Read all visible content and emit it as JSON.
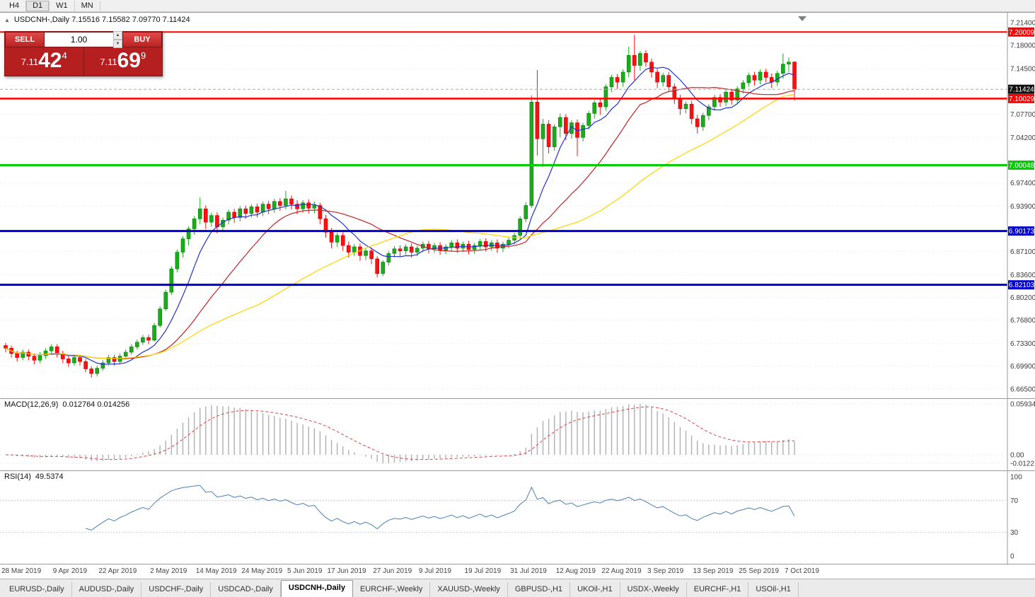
{
  "toolbar": {
    "timeframes": [
      "H4",
      "D1",
      "W1",
      "MN"
    ],
    "active": "D1"
  },
  "chart": {
    "symbol": "USDCNH-",
    "period": "Daily",
    "title_line": "USDCNH-,Daily  7.15516 7.15582 7.09770 7.11424"
  },
  "one_click": {
    "sell_label": "SELL",
    "buy_label": "BUY",
    "volume": "1.00",
    "sell_price": {
      "head": "7.11",
      "big": "42",
      "sup": "4"
    },
    "buy_price": {
      "head": "7.11",
      "big": "69",
      "sup": "9"
    }
  },
  "macd": {
    "title": "MACD(12,26,9)",
    "values": "0.012764 0.014256",
    "scale": [
      "0.059344",
      "0.00",
      "-0.012219"
    ]
  },
  "rsi": {
    "title": "RSI(14)",
    "value": "49.5374",
    "scale": [
      "100",
      "70",
      "30",
      "0"
    ]
  },
  "tabs": {
    "active_index": 4,
    "items": [
      "EURUSD-,Daily",
      "AUDUSD-,Daily",
      "USDCHF-,Daily",
      "USDCAD-,Daily",
      "USDCNH-,Daily",
      "EURCHF-,Weekly",
      "XAUUSD-,Weekly",
      "GBPUSD-,H1",
      "UKOil-,H1",
      "USDX-,Weekly",
      "EURCHF-,H1",
      "USOil-,H1"
    ],
    "separator": "|"
  },
  "chart_data": {
    "type": "candlestick",
    "symbol": "USDCNH-",
    "timeframe": "Daily",
    "ohlc_display": {
      "open": "7.15516",
      "high": "7.15582",
      "low": "7.09770",
      "close": "7.11424"
    },
    "current_price": 7.11424,
    "colors": {
      "bull": "#1cab1c",
      "bear": "#ff0f0f",
      "bull_border": "#0d7a0d",
      "bear_border": "#c00000"
    },
    "price_scale_ticks": [
      7.214,
      7.18,
      7.145,
      7.077,
      7.042,
      6.974,
      6.939,
      6.871,
      6.836,
      6.802,
      6.768,
      6.733,
      6.699,
      6.665
    ],
    "hlines": [
      {
        "price": 7.20009,
        "label": "7.20009",
        "color": "#ff0000",
        "width": 2
      },
      {
        "price": 7.10029,
        "label": "7.10029",
        "color": "#ff0000",
        "width": 2.5
      },
      {
        "price": 7.00048,
        "label": "7.00048",
        "color": "#00cc00",
        "width": 3
      },
      {
        "price": 6.90173,
        "label": "6.90173",
        "color": "#0000cc",
        "width": 3
      },
      {
        "price": 6.82103,
        "label": "6.82103",
        "color": "#0000cc",
        "width": 3
      }
    ],
    "moving_averages": [
      {
        "name": "fast-ma",
        "period": 8,
        "color": "#2233cc"
      },
      {
        "name": "medium-ma",
        "period": 20,
        "color": "#c22222"
      },
      {
        "name": "slow-ma",
        "period": 45,
        "color": "#ffd500"
      }
    ],
    "macd_settings": {
      "fast": 12,
      "slow": 26,
      "signal": 9,
      "histogram_color": "#b0b0b0",
      "signal_color": "#e04444"
    },
    "rsi_settings": {
      "period": 14,
      "color": "#4a7fb5",
      "levels": [
        70,
        30
      ]
    },
    "date_labels": [
      {
        "label": "28 Mar 2019",
        "index": 0
      },
      {
        "label": "9 Apr 2019",
        "index": 9
      },
      {
        "label": "22 Apr 2019",
        "index": 17
      },
      {
        "label": "2 May 2019",
        "index": 26
      },
      {
        "label": "14 May 2019",
        "index": 34
      },
      {
        "label": "24 May 2019",
        "index": 42
      },
      {
        "label": "5 Jun 2019",
        "index": 50
      },
      {
        "label": "17 Jun 2019",
        "index": 57
      },
      {
        "label": "27 Jun 2019",
        "index": 65
      },
      {
        "label": "9 Jul 2019",
        "index": 73
      },
      {
        "label": "19 Jul 2019",
        "index": 81
      },
      {
        "label": "31 Jul 2019",
        "index": 89
      },
      {
        "label": "12 Aug 2019",
        "index": 97
      },
      {
        "label": "22 Aug 2019",
        "index": 105
      },
      {
        "label": "3 Sep 2019",
        "index": 113
      },
      {
        "label": "13 Sep 2019",
        "index": 121
      },
      {
        "label": "25 Sep 2019",
        "index": 129
      },
      {
        "label": "7 Oct 2019",
        "index": 137
      }
    ],
    "candles": [
      [
        6.73,
        6.734,
        6.72,
        6.726
      ],
      [
        6.726,
        6.73,
        6.712,
        6.718
      ],
      [
        6.718,
        6.722,
        6.706,
        6.712
      ],
      [
        6.712,
        6.724,
        6.708,
        6.72
      ],
      [
        6.72,
        6.724,
        6.708,
        6.714
      ],
      [
        6.714,
        6.718,
        6.702,
        6.708
      ],
      [
        6.708,
        6.72,
        6.704,
        6.715
      ],
      [
        6.715,
        6.726,
        6.71,
        6.722
      ],
      [
        6.722,
        6.732,
        6.716,
        6.728
      ],
      [
        6.728,
        6.732,
        6.712,
        6.718
      ],
      [
        6.718,
        6.722,
        6.704,
        6.71
      ],
      [
        6.71,
        6.714,
        6.698,
        6.704
      ],
      [
        6.704,
        6.716,
        6.7,
        6.712
      ],
      [
        6.712,
        6.716,
        6.7,
        6.706
      ],
      [
        6.706,
        6.71,
        6.69,
        6.695
      ],
      [
        6.695,
        6.699,
        6.682,
        6.688
      ],
      [
        6.688,
        6.7,
        6.684,
        6.696
      ],
      [
        6.696,
        6.708,
        6.692,
        6.704
      ],
      [
        6.704,
        6.716,
        6.7,
        6.712
      ],
      [
        6.712,
        6.716,
        6.7,
        6.706
      ],
      [
        6.706,
        6.718,
        6.702,
        6.714
      ],
      [
        6.714,
        6.724,
        6.71,
        6.72
      ],
      [
        6.72,
        6.732,
        6.716,
        6.728
      ],
      [
        6.728,
        6.739,
        6.724,
        6.735
      ],
      [
        6.735,
        6.746,
        6.731,
        6.742
      ],
      [
        6.742,
        6.746,
        6.732,
        6.738
      ],
      [
        6.738,
        6.764,
        6.736,
        6.76
      ],
      [
        6.76,
        6.789,
        6.757,
        6.785
      ],
      [
        6.785,
        6.814,
        6.782,
        6.81
      ],
      [
        6.81,
        6.849,
        6.806,
        6.845
      ],
      [
        6.845,
        6.874,
        6.84,
        6.87
      ],
      [
        6.87,
        6.894,
        6.862,
        6.89
      ],
      [
        6.89,
        6.909,
        6.88,
        6.905
      ],
      [
        6.905,
        6.924,
        6.896,
        6.92
      ],
      [
        6.92,
        6.952,
        6.912,
        6.935
      ],
      [
        6.935,
        6.94,
        6.905,
        6.915
      ],
      [
        6.915,
        6.929,
        6.908,
        6.925
      ],
      [
        6.925,
        6.93,
        6.898,
        6.908
      ],
      [
        6.908,
        6.922,
        6.9,
        6.918
      ],
      [
        6.918,
        6.934,
        6.912,
        6.93
      ],
      [
        6.93,
        6.935,
        6.914,
        6.922
      ],
      [
        6.922,
        6.939,
        6.916,
        6.935
      ],
      [
        6.935,
        6.94,
        6.92,
        6.928
      ],
      [
        6.928,
        6.942,
        6.922,
        6.938
      ],
      [
        6.938,
        6.943,
        6.922,
        6.93
      ],
      [
        6.93,
        6.946,
        6.924,
        6.942
      ],
      [
        6.942,
        6.947,
        6.927,
        6.935
      ],
      [
        6.935,
        6.95,
        6.929,
        6.946
      ],
      [
        6.946,
        6.951,
        6.932,
        6.94
      ],
      [
        6.94,
        6.962,
        6.934,
        6.95
      ],
      [
        6.95,
        6.955,
        6.934,
        6.942
      ],
      [
        6.942,
        6.948,
        6.927,
        6.935
      ],
      [
        6.935,
        6.948,
        6.929,
        6.944
      ],
      [
        6.944,
        6.949,
        6.928,
        6.936
      ],
      [
        6.936,
        6.946,
        6.928,
        6.94
      ],
      [
        6.94,
        6.944,
        6.912,
        6.92
      ],
      [
        6.92,
        6.926,
        6.892,
        6.9
      ],
      [
        6.9,
        6.906,
        6.876,
        6.885
      ],
      [
        6.885,
        6.899,
        6.878,
        6.895
      ],
      [
        6.895,
        6.9,
        6.872,
        6.88
      ],
      [
        6.88,
        6.886,
        6.862,
        6.87
      ],
      [
        6.87,
        6.882,
        6.864,
        6.878
      ],
      [
        6.878,
        6.883,
        6.857,
        6.865
      ],
      [
        6.865,
        6.876,
        6.858,
        6.872
      ],
      [
        6.872,
        6.877,
        6.852,
        6.86
      ],
      [
        6.86,
        6.864,
        6.832,
        6.838
      ],
      [
        6.838,
        6.858,
        6.834,
        6.855
      ],
      [
        6.855,
        6.872,
        6.85,
        6.868
      ],
      [
        6.868,
        6.879,
        6.862,
        6.875
      ],
      [
        6.875,
        6.88,
        6.864,
        6.872
      ],
      [
        6.872,
        6.882,
        6.866,
        6.878
      ],
      [
        6.878,
        6.883,
        6.862,
        6.87
      ],
      [
        6.87,
        6.88,
        6.864,
        6.876
      ],
      [
        6.876,
        6.886,
        6.87,
        6.882
      ],
      [
        6.882,
        6.887,
        6.868,
        6.875
      ],
      [
        6.875,
        6.884,
        6.869,
        6.88
      ],
      [
        6.88,
        6.885,
        6.866,
        6.873
      ],
      [
        6.873,
        6.882,
        6.867,
        6.878
      ],
      [
        6.878,
        6.888,
        6.872,
        6.884
      ],
      [
        6.884,
        6.889,
        6.869,
        6.876
      ],
      [
        6.876,
        6.886,
        6.87,
        6.882
      ],
      [
        6.882,
        6.887,
        6.867,
        6.874
      ],
      [
        6.874,
        6.884,
        6.868,
        6.88
      ],
      [
        6.88,
        6.89,
        6.874,
        6.886
      ],
      [
        6.886,
        6.891,
        6.871,
        6.878
      ],
      [
        6.878,
        6.888,
        6.872,
        6.884
      ],
      [
        6.884,
        6.889,
        6.869,
        6.876
      ],
      [
        6.876,
        6.886,
        6.87,
        6.882
      ],
      [
        6.882,
        6.892,
        6.876,
        6.888
      ],
      [
        6.888,
        6.899,
        6.882,
        6.895
      ],
      [
        6.895,
        6.924,
        6.89,
        6.92
      ],
      [
        6.92,
        6.945,
        6.915,
        6.94
      ],
      [
        6.94,
        7.105,
        6.936,
        7.095
      ],
      [
        7.095,
        7.143,
        7.015,
        7.04
      ],
      [
        7.04,
        7.07,
        6.998,
        7.062
      ],
      [
        7.062,
        7.068,
        7.018,
        7.028
      ],
      [
        7.028,
        7.062,
        7.022,
        7.058
      ],
      [
        7.058,
        7.078,
        7.042,
        7.072
      ],
      [
        7.072,
        7.077,
        7.038,
        7.048
      ],
      [
        7.048,
        7.068,
        7.04,
        7.064
      ],
      [
        7.064,
        7.069,
        7.014,
        7.042
      ],
      [
        7.042,
        7.064,
        7.036,
        7.06
      ],
      [
        7.06,
        7.082,
        7.054,
        7.078
      ],
      [
        7.078,
        7.098,
        7.07,
        7.094
      ],
      [
        7.094,
        7.099,
        7.076,
        7.088
      ],
      [
        7.088,
        7.122,
        7.082,
        7.118
      ],
      [
        7.118,
        7.136,
        7.11,
        7.132
      ],
      [
        7.132,
        7.137,
        7.115,
        7.125
      ],
      [
        7.125,
        7.144,
        7.118,
        7.14
      ],
      [
        7.14,
        7.178,
        7.132,
        7.165
      ],
      [
        7.165,
        7.196,
        7.128,
        7.15
      ],
      [
        7.15,
        7.172,
        7.142,
        7.168
      ],
      [
        7.168,
        7.173,
        7.148,
        7.155
      ],
      [
        7.155,
        7.16,
        7.132,
        7.14
      ],
      [
        7.14,
        7.145,
        7.116,
        7.125
      ],
      [
        7.125,
        7.139,
        7.118,
        7.135
      ],
      [
        7.135,
        7.14,
        7.11,
        7.118
      ],
      [
        7.118,
        7.123,
        7.092,
        7.1
      ],
      [
        7.1,
        7.106,
        7.076,
        7.085
      ],
      [
        7.085,
        7.096,
        7.078,
        7.092
      ],
      [
        7.092,
        7.097,
        7.062,
        7.07
      ],
      [
        7.07,
        7.076,
        7.048,
        7.058
      ],
      [
        7.058,
        7.079,
        7.052,
        7.075
      ],
      [
        7.075,
        7.092,
        7.068,
        7.088
      ],
      [
        7.088,
        7.106,
        7.082,
        7.102
      ],
      [
        7.102,
        7.107,
        7.088,
        7.095
      ],
      [
        7.095,
        7.114,
        7.089,
        7.11
      ],
      [
        7.11,
        7.115,
        7.091,
        7.098
      ],
      [
        7.098,
        7.119,
        7.092,
        7.115
      ],
      [
        7.115,
        7.128,
        7.108,
        7.124
      ],
      [
        7.124,
        7.139,
        7.118,
        7.135
      ],
      [
        7.135,
        7.14,
        7.12,
        7.128
      ],
      [
        7.128,
        7.144,
        7.122,
        7.14
      ],
      [
        7.14,
        7.145,
        7.125,
        7.132
      ],
      [
        7.132,
        7.138,
        7.116,
        7.125
      ],
      [
        7.125,
        7.142,
        7.119,
        7.138
      ],
      [
        7.138,
        7.168,
        7.13,
        7.152
      ],
      [
        7.152,
        7.162,
        7.14,
        7.155
      ],
      [
        7.1552,
        7.1558,
        7.0977,
        7.1142
      ]
    ]
  }
}
